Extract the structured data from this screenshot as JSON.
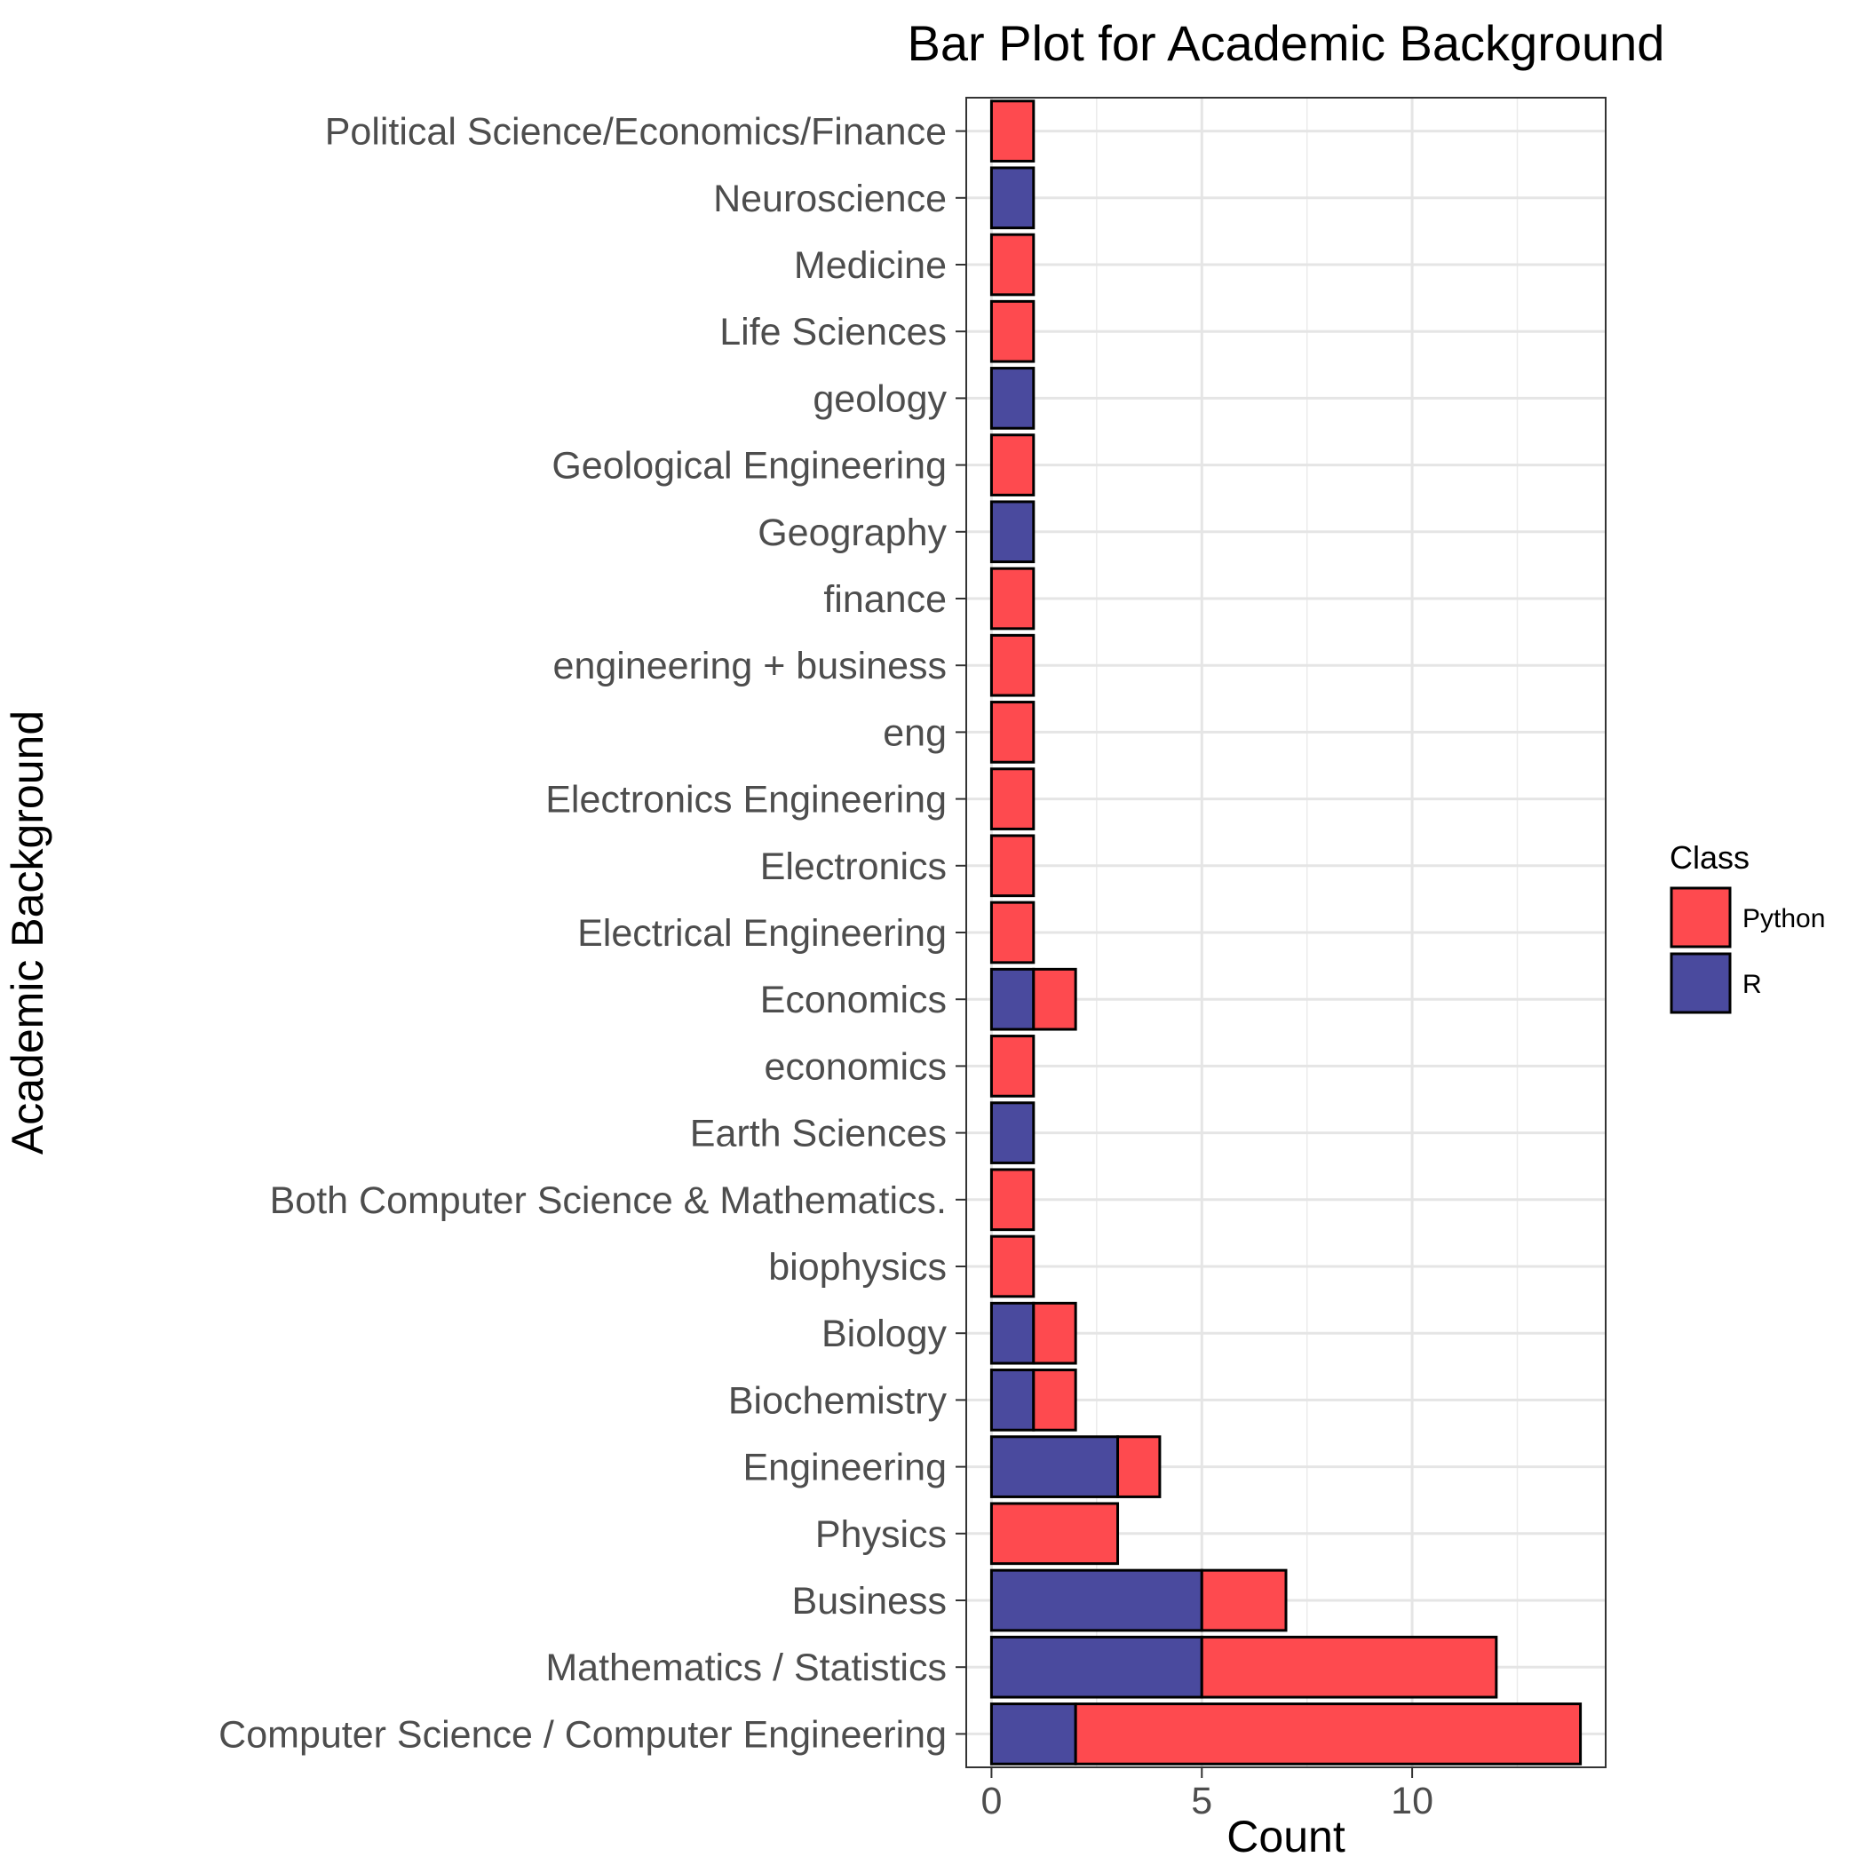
{
  "chart_data": {
    "type": "bar",
    "orientation": "horizontal",
    "stacked": true,
    "title": "Bar Plot for Academic Background",
    "xlabel": "Count",
    "ylabel": "Academic Background",
    "xlim": [
      -0.6,
      14.6
    ],
    "x_ticks": [
      0,
      5,
      10
    ],
    "grid": true,
    "legend": {
      "title": "Class",
      "position": "right"
    },
    "categories": [
      "Political Science/Economics/Finance",
      "Neuroscience",
      "Medicine",
      "Life Sciences",
      "geology",
      "Geological Engineering",
      "Geography",
      "finance",
      "engineering + business",
      "eng",
      "Electronics Engineering",
      "Electronics",
      "Electrical Engineering",
      "Economics",
      "economics",
      "Earth Sciences",
      "Both Computer Science & Mathematics.",
      "biophysics",
      "Biology",
      "Biochemistry",
      "Engineering",
      "Physics",
      "Business",
      "Mathematics / Statistics",
      "Computer Science / Computer Engineering"
    ],
    "series": [
      {
        "name": "R",
        "color": "#4a4a9e",
        "values": [
          0,
          1,
          0,
          0,
          1,
          0,
          1,
          0,
          0,
          0,
          0,
          0,
          0,
          1,
          0,
          1,
          0,
          0,
          1,
          1,
          3,
          0,
          5,
          5,
          2
        ]
      },
      {
        "name": "Python",
        "color": "#fe4a4f",
        "values": [
          1,
          0,
          1,
          1,
          0,
          1,
          0,
          1,
          1,
          1,
          1,
          1,
          1,
          1,
          1,
          0,
          1,
          1,
          1,
          1,
          1,
          3,
          2,
          7,
          12
        ]
      }
    ]
  }
}
